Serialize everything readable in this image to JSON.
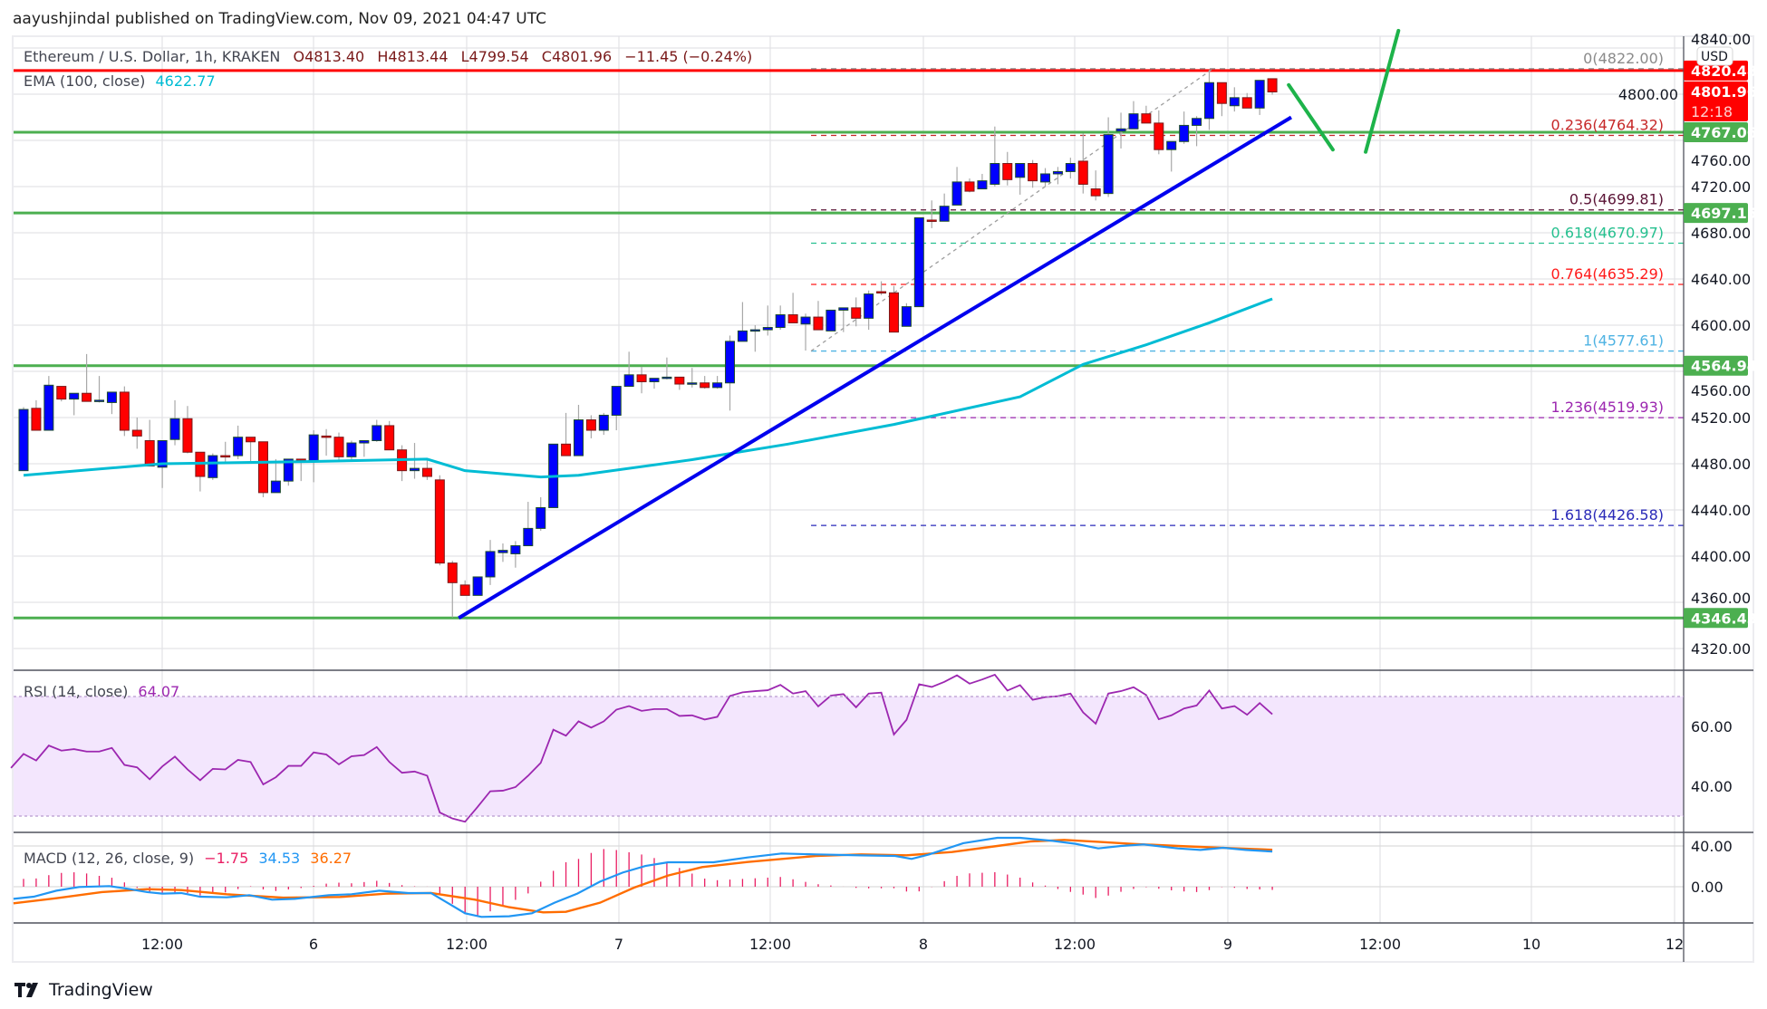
{
  "header": {
    "published": "aayushjindal published on TradingView.com, Nov 09, 2021 04:47 UTC"
  },
  "legend": {
    "symbol": "Ethereum / U.S. Dollar, 1h, KRAKEN",
    "open": "O4813.40",
    "high": "H4813.44",
    "low": "L4799.54",
    "close": "C4801.96",
    "change": "−11.45 (−0.24%)",
    "ema_label": "EMA (100, close)",
    "ema_value": "4622.77"
  },
  "price_axis": {
    "currency": "USD",
    "ticks": [
      "4840.00",
      "4800.00",
      "4760.00",
      "4720.00",
      "4680.00",
      "4640.00",
      "4600.00",
      "4560.00",
      "4520.00",
      "4480.00",
      "4440.00",
      "4400.00",
      "4360.00",
      "4320.00"
    ],
    "last_price": "4801.96",
    "countdown": "12:18"
  },
  "time_axis": {
    "ticks": [
      "12:00",
      "6",
      "12:00",
      "7",
      "12:00",
      "8",
      "12:00",
      "9",
      "12:00",
      "10",
      "12"
    ]
  },
  "colors": {
    "up": "#0000ff",
    "down": "#ff0000",
    "ema": "#00bcd4",
    "support": "#4caf50",
    "resistance": "#ff0000",
    "trendline": "#0000ee",
    "rsi": "#9c27b0",
    "macd": "#2196f3",
    "signal": "#ff6d00",
    "hist": "#e91e63"
  },
  "chart_data": [
    {
      "type": "candlestick",
      "title": "Ethereum / U.S. Dollar, 1h, KRAKEN",
      "x_start": "Nov 5 01:00",
      "interval": "1h",
      "ylim": [
        4300,
        4850
      ],
      "candles_ohlc": [
        [
          4474,
          4529,
          4474,
          4527
        ],
        [
          4528,
          4535,
          4509,
          4509
        ],
        [
          4509,
          4556,
          4509,
          4548
        ],
        [
          4547,
          4547,
          4534,
          4536
        ],
        [
          4536,
          4541,
          4522,
          4541
        ],
        [
          4541,
          4575,
          4534,
          4534
        ],
        [
          4535,
          4556,
          4533,
          4535
        ],
        [
          4533,
          4542,
          4523,
          4542
        ],
        [
          4542,
          4547,
          4504,
          4509
        ],
        [
          4509,
          4520,
          4493,
          4504
        ],
        [
          4500,
          4518,
          4478,
          4478
        ],
        [
          4477,
          4500,
          4459,
          4500
        ],
        [
          4501,
          4535,
          4496,
          4519
        ],
        [
          4519,
          4530,
          4489,
          4490
        ],
        [
          4490,
          4490,
          4456,
          4469
        ],
        [
          4468,
          4489,
          4466,
          4487
        ],
        [
          4487,
          4499,
          4481,
          4486
        ],
        [
          4487,
          4513,
          4484,
          4503
        ],
        [
          4503,
          4503,
          4482,
          4499
        ],
        [
          4499,
          4499,
          4451,
          4455
        ],
        [
          4455,
          4484,
          4455,
          4465
        ],
        [
          4465,
          4484,
          4461,
          4484
        ],
        [
          4484,
          4484,
          4465,
          4483
        ],
        [
          4482,
          4509,
          4464,
          4505
        ],
        [
          4504,
          4510,
          4487,
          4503
        ],
        [
          4503,
          4507,
          4482,
          4486
        ],
        [
          4486,
          4500,
          4482,
          4498
        ],
        [
          4498,
          4500,
          4486,
          4500
        ],
        [
          4500,
          4518,
          4499,
          4513
        ],
        [
          4513,
          4517,
          4492,
          4492
        ],
        [
          4492,
          4496,
          4465,
          4474
        ],
        [
          4474,
          4498,
          4467,
          4476
        ],
        [
          4476,
          4483,
          4466,
          4469
        ],
        [
          4466,
          4470,
          4392,
          4394
        ],
        [
          4394,
          4396,
          4347,
          4377
        ],
        [
          4375,
          4379,
          4366,
          4366
        ],
        [
          4366,
          4382,
          4366,
          4382
        ],
        [
          4382,
          4414,
          4375,
          4404
        ],
        [
          4403,
          4411,
          4395,
          4405
        ],
        [
          4402,
          4413,
          4390,
          4409
        ],
        [
          4409,
          4447,
          4409,
          4424
        ],
        [
          4424,
          4451,
          4422,
          4442
        ],
        [
          4442,
          4497,
          4442,
          4497
        ],
        [
          4497,
          4524,
          4487,
          4487
        ],
        [
          4487,
          4531,
          4487,
          4518
        ],
        [
          4518,
          4522,
          4502,
          4509
        ],
        [
          4509,
          4524,
          4505,
          4522
        ],
        [
          4522,
          4547,
          4509,
          4547
        ],
        [
          4547,
          4577,
          4547,
          4557
        ],
        [
          4557,
          4564,
          4541,
          4551
        ],
        [
          4551,
          4554,
          4545,
          4554
        ],
        [
          4555,
          4572,
          4553,
          4555
        ],
        [
          4555,
          4555,
          4544,
          4549
        ],
        [
          4549,
          4563,
          4546,
          4550
        ],
        [
          4550,
          4556,
          4545,
          4546
        ],
        [
          4546,
          4556,
          4545,
          4550
        ],
        [
          4550,
          4591,
          4526,
          4586
        ],
        [
          4586,
          4620,
          4586,
          4595
        ],
        [
          4595,
          4600,
          4577,
          4596
        ],
        [
          4596,
          4617,
          4591,
          4598
        ],
        [
          4598,
          4617,
          4596,
          4609
        ],
        [
          4609,
          4628,
          4602,
          4602
        ],
        [
          4601,
          4610,
          4578,
          4607
        ],
        [
          4607,
          4621,
          4596,
          4596
        ],
        [
          4595,
          4613,
          4595,
          4613
        ],
        [
          4613,
          4615,
          4594,
          4615
        ],
        [
          4615,
          4624,
          4599,
          4606
        ],
        [
          4606,
          4630,
          4596,
          4627
        ],
        [
          4629,
          4638,
          4626,
          4628
        ],
        [
          4628,
          4634,
          4594,
          4594
        ],
        [
          4599,
          4619,
          4599,
          4616
        ],
        [
          4616,
          4693,
          4616,
          4693
        ],
        [
          4691,
          4708,
          4684,
          4690
        ],
        [
          4690,
          4714,
          4690,
          4703
        ],
        [
          4704,
          4737,
          4704,
          4724
        ],
        [
          4724,
          4727,
          4715,
          4716
        ],
        [
          4718,
          4731,
          4718,
          4725
        ],
        [
          4722,
          4772,
          4720,
          4740
        ],
        [
          4740,
          4750,
          4721,
          4726
        ],
        [
          4728,
          4740,
          4713,
          4740
        ],
        [
          4740,
          4743,
          4719,
          4725
        ],
        [
          4724,
          4736,
          4720,
          4731
        ],
        [
          4731,
          4737,
          4722,
          4733
        ],
        [
          4733,
          4745,
          4727,
          4740
        ],
        [
          4742,
          4766,
          4714,
          4722
        ],
        [
          4718,
          4734,
          4708,
          4712
        ],
        [
          4714,
          4780,
          4711,
          4765
        ],
        [
          4768,
          4784,
          4753,
          4770
        ],
        [
          4770,
          4794,
          4770,
          4783
        ],
        [
          4783,
          4790,
          4775,
          4775
        ],
        [
          4775,
          4786,
          4748,
          4752
        ],
        [
          4752,
          4759,
          4733,
          4759
        ],
        [
          4759,
          4785,
          4757,
          4773
        ],
        [
          4773,
          4781,
          4755,
          4779
        ],
        [
          4779,
          4821,
          4769,
          4810
        ],
        [
          4810,
          4810,
          4781,
          4792
        ],
        [
          4790,
          4806,
          4785,
          4797
        ],
        [
          4797,
          4801,
          4788,
          4788
        ],
        [
          4788,
          4812,
          4782,
          4812
        ],
        [
          4813.4,
          4813.44,
          4799.54,
          4801.96
        ]
      ],
      "ema100_points": [
        [
          0,
          4470
        ],
        [
          11,
          4480
        ],
        [
          23,
          4482
        ],
        [
          32,
          4484
        ],
        [
          35,
          4474
        ],
        [
          41,
          4468.5
        ],
        [
          44,
          4470
        ],
        [
          53,
          4483.5
        ],
        [
          60.6,
          4497
        ],
        [
          69,
          4514
        ],
        [
          79,
          4538
        ],
        [
          84,
          4566
        ],
        [
          89,
          4583
        ],
        [
          94,
          4602
        ],
        [
          99,
          4622.77
        ]
      ],
      "horizontal_levels": {
        "resistance": [
          {
            "value": 4820.48,
            "label": "4820.48"
          }
        ],
        "support": [
          {
            "value": 4767.06,
            "label": "4767.06"
          },
          {
            "value": 4697.15,
            "label": "4697.15"
          },
          {
            "value": 4564.94,
            "label": "4564.94"
          },
          {
            "value": 4346.43,
            "label": "4346.43"
          }
        ]
      },
      "fibonacci": {
        "anchor": {
          "from_index": 62,
          "to_index": 94,
          "from": 4577.61,
          "to": 4822.0
        },
        "levels": [
          {
            "label": "0(4822.00)",
            "value": 4822.0,
            "color": "#8a8a8a"
          },
          {
            "label": "0.236(4764.32)",
            "value": 4764.32,
            "color": "#c62828"
          },
          {
            "label": "0.5(4699.81)",
            "value": 4699.81,
            "color": "#5a1436"
          },
          {
            "label": "0.618(4670.97)",
            "value": 4670.97,
            "color": "#26c08f"
          },
          {
            "label": "0.764(4635.29)",
            "value": 4635.29,
            "color": "#ff1a1a"
          },
          {
            "label": "1(4577.61)",
            "value": 4577.61,
            "color": "#4fb3e3"
          },
          {
            "label": "1.236(4519.93)",
            "value": 4519.93,
            "color": "#9c27b0"
          },
          {
            "label": "1.618(4426.58)",
            "value": 4426.58,
            "color": "#2a2ab8"
          }
        ]
      },
      "trendline": {
        "from": [
          34.5,
          4346.43
        ],
        "to": [
          100.5,
          4780
        ]
      },
      "projection_path": [
        [
          100.3,
          4808
        ],
        [
          103.8,
          4752
        ],
        [
          106.4,
          4750
        ],
        [
          109,
          4855
        ]
      ]
    },
    {
      "type": "line",
      "title": "RSI (14, close)",
      "value_label": "64.07",
      "ylim": [
        25,
        80
      ],
      "ticks": [
        "60.00",
        "40.00"
      ],
      "band": [
        30,
        70
      ],
      "start_index": -1,
      "values": [
        46.1,
        50.8,
        48.6,
        53.6,
        51.9,
        52.4,
        51.6,
        51.6,
        52.8,
        47.1,
        46.3,
        42.3,
        46.6,
        49.9,
        45.6,
        42.0,
        45.8,
        45.6,
        48.8,
        48.1,
        40.6,
        43.0,
        46.8,
        46.8,
        51.3,
        50.6,
        47.3,
        50.0,
        50.4,
        53.1,
        48.1,
        44.5,
        44.9,
        43.5,
        31.2,
        29.2,
        28.1,
        33.1,
        38.3,
        38.5,
        39.7,
        43.5,
        47.8,
        58.9,
        56.9,
        61.7,
        59.6,
        61.7,
        65.6,
        66.8,
        65.2,
        65.8,
        65.8,
        63.5,
        63.7,
        62.3,
        63.2,
        70.2,
        71.4,
        71.8,
        72.1,
        73.9,
        71.0,
        71.8,
        66.7,
        70.3,
        70.8,
        66.4,
        71.0,
        71.3,
        57.3,
        62.2,
        74.1,
        73.2,
        74.9,
        77.1,
        74.3,
        75.7,
        77.3,
        72.0,
        73.8,
        68.9,
        69.8,
        70.1,
        71.0,
        64.7,
        60.9,
        71.0,
        71.8,
        73.1,
        70.5,
        62.4,
        63.7,
        66.0,
        67.0,
        72.0,
        66.0,
        66.8,
        63.9,
        67.8,
        64.07
      ]
    },
    {
      "type": "line",
      "title": "MACD (12, 26, close, 9)",
      "hist_label": "−1.75",
      "macd_label": "34.53",
      "signal_label": "36.27",
      "ylim": [
        -40,
        50
      ],
      "ticks": [
        "40.00",
        "0.00"
      ],
      "macd_points": [
        [
          -0.8,
          -11.9
        ],
        [
          0.8,
          -9.8
        ],
        [
          2.6,
          -3.9
        ],
        [
          4.4,
          -0.3
        ],
        [
          6.8,
          0.6
        ],
        [
          8.0,
          -1.5
        ],
        [
          9.8,
          -5.3
        ],
        [
          11.0,
          -6.8
        ],
        [
          12.5,
          -6.2
        ],
        [
          14.0,
          -9.8
        ],
        [
          16.1,
          -10.4
        ],
        [
          17.9,
          -8.3
        ],
        [
          19.7,
          -12.7
        ],
        [
          21.5,
          -11.9
        ],
        [
          24.2,
          -8.3
        ],
        [
          26.0,
          -7.4
        ],
        [
          28.2,
          -3.9
        ],
        [
          30.5,
          -6.2
        ],
        [
          32.3,
          -6.2
        ],
        [
          33.6,
          -15.7
        ],
        [
          35.0,
          -26.1
        ],
        [
          36.3,
          -29.6
        ],
        [
          38.5,
          -29.0
        ],
        [
          40.3,
          -26.1
        ],
        [
          42.1,
          -15.7
        ],
        [
          43.9,
          -6.8
        ],
        [
          45.7,
          5.0
        ],
        [
          47.5,
          13.9
        ],
        [
          49.3,
          20.4
        ],
        [
          51.1,
          24.0
        ],
        [
          54.7,
          24.0
        ],
        [
          57.4,
          28.7
        ],
        [
          60.1,
          32.6
        ],
        [
          62.8,
          31.7
        ],
        [
          66.4,
          30.8
        ],
        [
          69.1,
          30.2
        ],
        [
          70.4,
          27.3
        ],
        [
          71.8,
          31.7
        ],
        [
          74.5,
          42.7
        ],
        [
          77.2,
          48.0
        ],
        [
          79.0,
          48.0
        ],
        [
          81.6,
          45.0
        ],
        [
          83.4,
          42.1
        ],
        [
          85.2,
          37.6
        ],
        [
          87.0,
          40.0
        ],
        [
          88.8,
          41.5
        ],
        [
          91.5,
          37.6
        ],
        [
          93.3,
          36.1
        ],
        [
          95.1,
          38.2
        ],
        [
          96.9,
          36.1
        ],
        [
          99.0,
          34.53
        ]
      ],
      "signal_points": [
        [
          -0.8,
          -16.3
        ],
        [
          2.6,
          -11.3
        ],
        [
          6.2,
          -5.3
        ],
        [
          9.8,
          -2.4
        ],
        [
          12.5,
          -3.3
        ],
        [
          16.1,
          -7.4
        ],
        [
          20.6,
          -10.7
        ],
        [
          25.1,
          -10.1
        ],
        [
          28.7,
          -6.8
        ],
        [
          32.3,
          -6.2
        ],
        [
          35.8,
          -12.7
        ],
        [
          38.5,
          -20.1
        ],
        [
          41.2,
          -25.2
        ],
        [
          43.0,
          -24.6
        ],
        [
          45.7,
          -15.7
        ],
        [
          48.4,
          -0.9
        ],
        [
          51.1,
          11.0
        ],
        [
          53.8,
          19.3
        ],
        [
          57.4,
          24.3
        ],
        [
          62.8,
          30.2
        ],
        [
          66.4,
          31.7
        ],
        [
          70.0,
          30.8
        ],
        [
          73.6,
          34.1
        ],
        [
          77.2,
          40.0
        ],
        [
          79.8,
          44.4
        ],
        [
          82.5,
          45.9
        ],
        [
          85.2,
          44.1
        ],
        [
          87.9,
          42.1
        ],
        [
          91.5,
          40.0
        ],
        [
          95.1,
          38.2
        ],
        [
          99.0,
          36.27
        ]
      ]
    }
  ],
  "footer": {
    "brand": "TradingView"
  }
}
